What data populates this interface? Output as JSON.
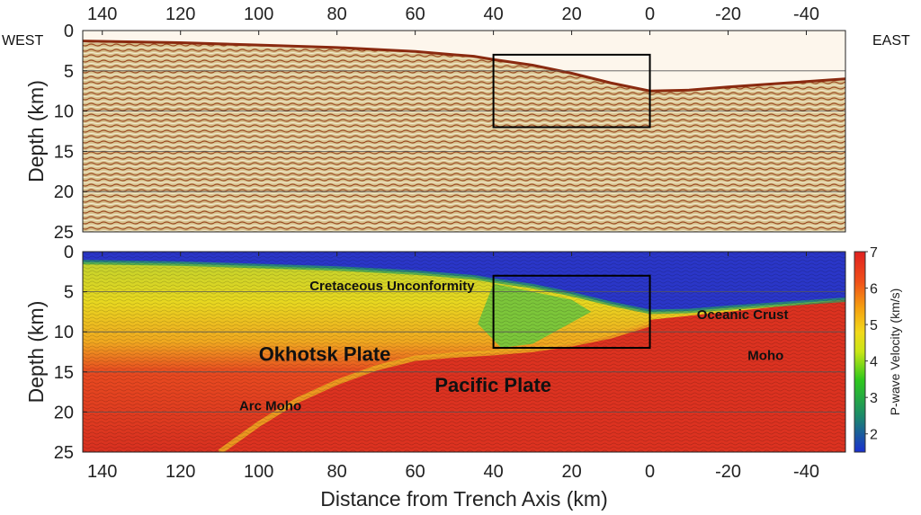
{
  "chart_data": [
    {
      "type": "heatmap",
      "panel": "seismic-reflection",
      "title": "",
      "ylabel": "Depth (km)",
      "xlim": [
        145,
        -50
      ],
      "ylim": [
        25,
        0
      ],
      "x_ticks": [
        140,
        120,
        100,
        80,
        60,
        40,
        20,
        0,
        -20,
        -40
      ],
      "y_ticks": [
        0,
        5,
        10,
        15,
        20,
        25
      ],
      "grid_y": true,
      "side_labels": {
        "left": "WEST",
        "right": "EAST"
      },
      "highlight_box": {
        "x": [
          40,
          0
        ],
        "y": [
          3,
          12
        ]
      },
      "seafloor_depth": {
        "x": [
          145,
          120,
          100,
          80,
          60,
          45,
          40,
          30,
          20,
          10,
          0,
          -10,
          -20,
          -35,
          -50
        ],
        "y": [
          1.3,
          1.5,
          1.8,
          2.1,
          2.6,
          3.2,
          3.6,
          4.3,
          5.3,
          6.5,
          7.5,
          7.4,
          7.0,
          6.5,
          6.0
        ]
      }
    },
    {
      "type": "heatmap",
      "panel": "p-wave-velocity",
      "ylabel": "Depth (km)",
      "xlabel": "Distance from Trench Axis (km)",
      "xlim": [
        145,
        -50
      ],
      "ylim": [
        25,
        0
      ],
      "x_ticks": [
        140,
        120,
        100,
        80,
        60,
        40,
        20,
        0,
        -20,
        -40
      ],
      "y_ticks": [
        0,
        5,
        10,
        15,
        20,
        25
      ],
      "grid_y": true,
      "colorbar": {
        "label": "P-wave Velocity (km/s)",
        "range": [
          1.5,
          7
        ],
        "ticks": [
          2,
          3,
          4,
          5,
          6,
          7
        ],
        "colormap": "jet"
      },
      "highlight_box": {
        "x": [
          40,
          0
        ],
        "y": [
          3,
          12
        ]
      },
      "slab_top": {
        "x": [
          0,
          10,
          20,
          30,
          40,
          50,
          60,
          70,
          80,
          90,
          100,
          110
        ],
        "y": [
          9,
          10.5,
          11.5,
          12.2,
          12.6,
          12.9,
          13.3,
          14.5,
          16.3,
          18.5,
          21.5,
          25
        ]
      },
      "annotations": [
        {
          "text": "Cretaceous Unconformity",
          "x": 87,
          "y": 4.8,
          "size": "small"
        },
        {
          "text": "Oceanic Crust",
          "x": -12,
          "y": 8.4,
          "size": "small"
        },
        {
          "text": "Okhotsk Plate",
          "x": 100,
          "y": 13.6,
          "size": "large"
        },
        {
          "text": "Pacific Plate",
          "x": 55,
          "y": 17.5,
          "size": "large"
        },
        {
          "text": "Arc Moho",
          "x": 105,
          "y": 19.8,
          "size": "small"
        },
        {
          "text": "Moho",
          "x": -25,
          "y": 13.5,
          "size": "small"
        }
      ]
    }
  ]
}
